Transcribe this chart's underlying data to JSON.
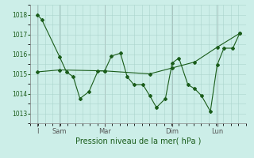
{
  "bg_color": "#cceee8",
  "line_color": "#1a5c1a",
  "grid_color": "#aad4cc",
  "xlabel": "Pression niveau de la mer( hPa )",
  "ylim": [
    1012.5,
    1018.5
  ],
  "yticks": [
    1013,
    1014,
    1015,
    1016,
    1017,
    1018
  ],
  "xtick_labels": [
    "I",
    "Sam",
    "Mar",
    "Dim",
    "Lun"
  ],
  "xtick_positions": [
    0,
    1,
    3,
    6,
    8
  ],
  "xlim": [
    -0.3,
    9.3
  ],
  "series1_x": [
    0,
    0.2,
    1.0,
    1.3,
    1.6,
    1.9,
    2.3,
    2.7,
    3.0,
    3.3,
    3.7,
    4.0,
    4.3,
    4.7,
    5.0,
    5.3,
    5.7,
    6.0,
    6.3,
    6.7,
    7.0,
    7.3,
    7.7,
    8.0,
    8.3,
    8.7,
    9.0
  ],
  "series1_y": [
    1018.0,
    1017.75,
    1015.85,
    1015.1,
    1014.85,
    1013.75,
    1014.1,
    1015.15,
    1015.15,
    1015.9,
    1016.05,
    1014.85,
    1014.45,
    1014.45,
    1013.9,
    1013.3,
    1013.75,
    1015.55,
    1015.8,
    1014.45,
    1014.25,
    1013.9,
    1013.1,
    1015.45,
    1016.3,
    1016.3,
    1017.05
  ],
  "series2_x": [
    0,
    1,
    3,
    5,
    6,
    7,
    8,
    9
  ],
  "series2_y": [
    1015.1,
    1015.2,
    1015.15,
    1015.0,
    1015.3,
    1015.6,
    1016.35,
    1017.05
  ],
  "vline_positions": [
    0,
    1,
    3,
    6,
    8
  ]
}
